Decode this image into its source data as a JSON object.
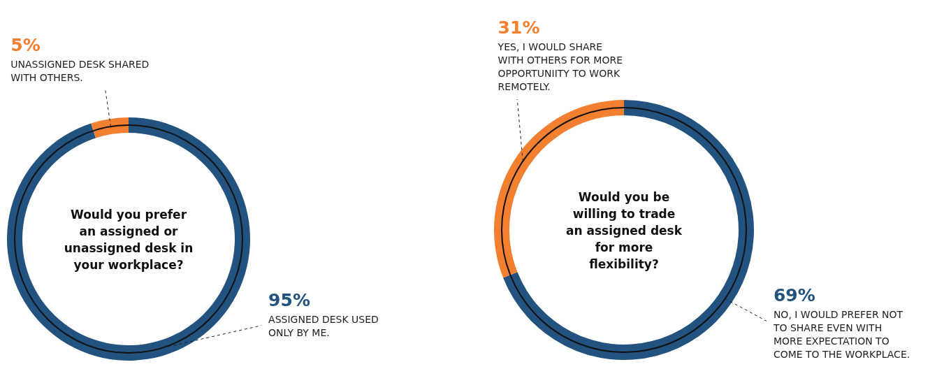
{
  "chart_data": [
    {
      "type": "donut",
      "title": "Would you prefer an assigned or unassigned desk in your workplace?",
      "categories": [
        "ASSIGNED DESK USED ONLY BY ME.",
        "UNASSIGNED DESK SHARED WITH OTHERS."
      ],
      "values": [
        95,
        5
      ],
      "colors": [
        "#22527f",
        "#f37f30"
      ],
      "value_labels": [
        "95%",
        "5%"
      ]
    },
    {
      "type": "donut",
      "title": "Would you be willing to trade an assigned desk for more flexibility?",
      "categories": [
        "NO, I WOULD PREFER NOT TO SHARE EVEN WITH MORE EXPECTATION TO COME TO THE WORKPLACE.",
        "YES, I WOULD SHARE WITH OTHERS FOR MORE OPPORTUNIITY TO WORK REMOTELY."
      ],
      "values": [
        69,
        31
      ],
      "colors": [
        "#22527f",
        "#f37f30"
      ],
      "value_labels": [
        "69%",
        "31%"
      ]
    }
  ]
}
